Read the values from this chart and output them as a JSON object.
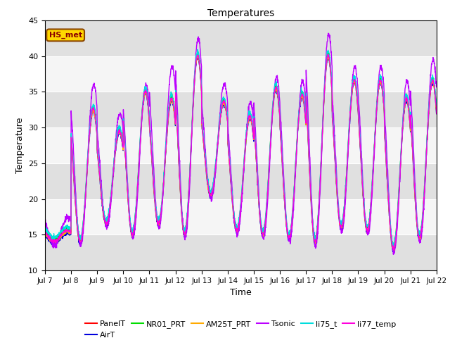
{
  "title": "Temperatures",
  "xlabel": "Time",
  "ylabel": "Temperature",
  "ylim": [
    10,
    45
  ],
  "yticks": [
    10,
    15,
    20,
    25,
    30,
    35,
    40,
    45
  ],
  "xtick_labels": [
    "Jul 7",
    "Jul 8",
    "Jul 9",
    "Jul 10",
    "Jul 11",
    "Jul 12",
    "Jul 13",
    "Jul 14",
    "Jul 15",
    "Jul 16",
    "Jul 17",
    "Jul 18",
    "Jul 19",
    "Jul 20",
    "Jul 21",
    "Jul 22"
  ],
  "n_days": 15,
  "series_order": [
    "PanelT",
    "AirT",
    "NR01_PRT",
    "AM25T_PRT",
    "Tsonic",
    "li75_t",
    "li77_temp"
  ],
  "series": {
    "PanelT": {
      "color": "#ff0000",
      "lw": 0.9
    },
    "AirT": {
      "color": "#0000dd",
      "lw": 0.9
    },
    "NR01_PRT": {
      "color": "#00dd00",
      "lw": 0.9
    },
    "AM25T_PRT": {
      "color": "#ffaa00",
      "lw": 0.9
    },
    "Tsonic": {
      "color": "#bb00ff",
      "lw": 1.0
    },
    "li75_t": {
      "color": "#00dddd",
      "lw": 0.9
    },
    "li77_temp": {
      "color": "#ff00dd",
      "lw": 0.9
    }
  },
  "annotation_text": "HS_met",
  "bg_band_color": "#e0e0e0",
  "plot_bg": "#f5f5f5",
  "day_peaks": [
    15.5,
    32.5,
    29.5,
    35.0,
    34.0,
    40.0,
    33.5,
    31.5,
    35.5,
    34.5,
    40.0,
    36.5,
    36.5,
    34.0,
    36.5
  ],
  "day_mins": [
    14.0,
    14.0,
    16.5,
    15.0,
    16.5,
    15.0,
    20.5,
    15.5,
    15.0,
    14.5,
    14.0,
    16.0,
    15.5,
    13.0,
    14.5
  ],
  "tsonic_extra_peaks": [
    2.0,
    3.5,
    2.5,
    1.0,
    4.5,
    2.5,
    2.5,
    2.0,
    1.5,
    2.0,
    3.0,
    2.0,
    2.0,
    2.5,
    3.0
  ]
}
